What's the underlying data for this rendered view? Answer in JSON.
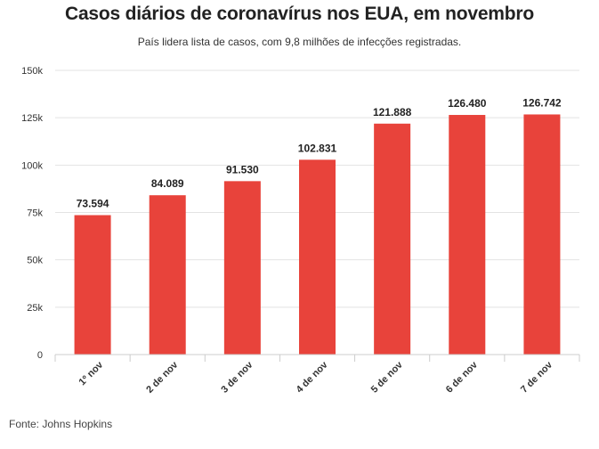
{
  "chart_data": {
    "type": "bar",
    "title": "Casos diários de coronavírus nos EUA, em novembro",
    "subtitle": "País lidera lista de casos, com 9,8 milhões de infecções registradas.",
    "source": "Fonte: Johns Hopkins",
    "categories": [
      "1º nov",
      "2 de nov",
      "3 de nov",
      "4 de nov",
      "5 de nov",
      "6 de nov",
      "7 de nov"
    ],
    "values": [
      73594,
      84089,
      91530,
      102831,
      121888,
      126480,
      126742
    ],
    "value_labels": [
      "73.594",
      "84.089",
      "91.530",
      "102.831",
      "121.888",
      "126.480",
      "126.742"
    ],
    "y_ticks": [
      0,
      25000,
      50000,
      75000,
      100000,
      125000,
      150000
    ],
    "y_tick_labels": [
      "0",
      "25k",
      "50k",
      "75k",
      "100k",
      "125k",
      "150k"
    ],
    "ylim": [
      0,
      150000
    ],
    "xlabel": "",
    "ylabel": "",
    "grid": true,
    "bar_color": "#e8433b"
  }
}
